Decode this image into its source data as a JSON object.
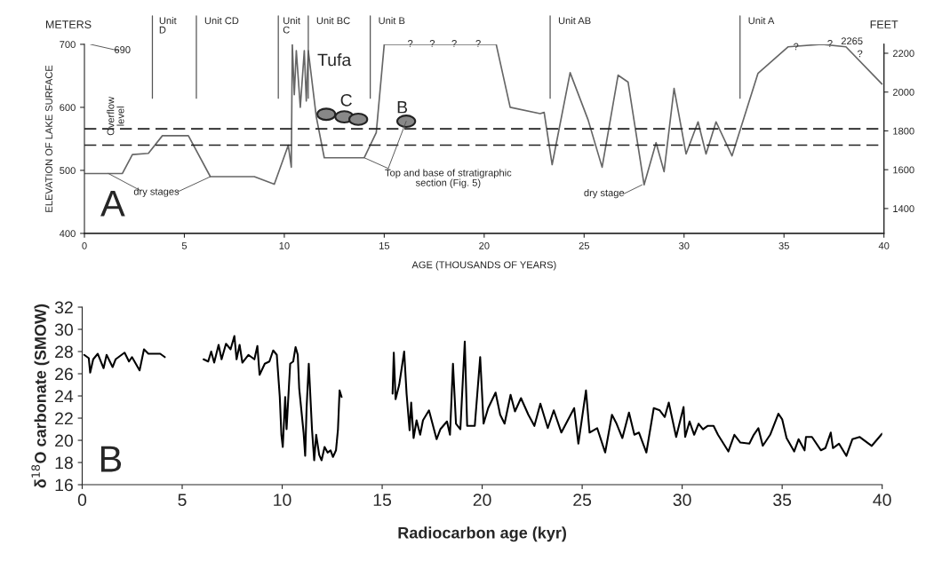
{
  "chart_data": [
    {
      "type": "line",
      "xlabel": "AGE (THOUSANDS OF YEARS)",
      "ylabel": "ELEVATION OF LAKE SURFACE",
      "y2label": "FEET",
      "xlim": [
        0,
        40
      ],
      "xticks": [
        0,
        5,
        10,
        15,
        20,
        25,
        30,
        35,
        40
      ],
      "ylim": [
        400,
        700
      ],
      "yticks": [
        400,
        500,
        600,
        700
      ],
      "y2lim": [
        1272,
        2246
      ],
      "y2ticks": [
        1400,
        1600,
        1800,
        2000,
        2200
      ],
      "grid": false,
      "legend": false,
      "series": [
        {
          "color": "#666666",
          "line_style": "solid",
          "x": [
            0,
            1.9,
            2.4,
            3.2,
            3.9,
            5.2,
            6.3,
            8.5,
            9.5,
            10.2,
            10.35,
            10.4,
            10.5,
            10.6,
            10.8,
            11.0,
            11.1,
            11.2,
            11.6,
            12.0,
            14.0,
            14.6,
            15.0,
            20.6,
            21.3,
            22.8,
            23.0,
            23.4,
            24.3,
            25.2,
            25.9,
            26.7,
            27.2,
            28.0,
            28.6,
            29.0,
            29.5,
            30.1,
            30.7,
            31.1,
            31.6,
            32.4,
            33.7,
            35.2,
            36.9,
            38.1,
            39.9
          ],
          "values": [
            495,
            495,
            525,
            527,
            555,
            555,
            490,
            490,
            478,
            540,
            505,
            700,
            620,
            690,
            600,
            690,
            610,
            690,
            585,
            520,
            520,
            560,
            700,
            700,
            600,
            590,
            592,
            509,
            655,
            580,
            505,
            651,
            640,
            477,
            544,
            498,
            630,
            526,
            577,
            526,
            577,
            523,
            654,
            696,
            700,
            696,
            637
          ]
        }
      ],
      "ref_lines": [
        {
          "axis": "y",
          "value": 566,
          "color": "#222222",
          "line_style": "dashed"
        },
        {
          "axis": "y",
          "value": 540,
          "color": "#222222",
          "line_style": "dashed"
        },
        {
          "axis": "x",
          "value": 3.4,
          "label": "Unit\nD",
          "color": "#555555"
        },
        {
          "axis": "x",
          "value": 5.6,
          "label": "Unit CD",
          "color": "#555555"
        },
        {
          "axis": "x",
          "value": 9.7,
          "label": "Unit\nC",
          "color": "#555555"
        },
        {
          "axis": "x",
          "value": 11.2,
          "label": "Unit BC",
          "color": "#555555"
        },
        {
          "axis": "x",
          "value": 14.3,
          "label": "Unit B",
          "color": "#555555"
        },
        {
          "axis": "x",
          "value": 23.3,
          "label": "Unit AB",
          "color": "#555555"
        },
        {
          "axis": "x",
          "value": 32.8,
          "label": "Unit A",
          "color": "#555555"
        }
      ],
      "annotations": [
        "METERS",
        "A",
        "Overflow\nlevel",
        "690",
        "2265",
        "dry stages",
        "dry stage",
        "Top and base of stratigraphic\nsection (Fig. 5)",
        "Tufa",
        "C",
        "B",
        {
          "text": "?",
          "x": 16.3,
          "y": 700
        },
        {
          "text": "?",
          "x": 17.4,
          "y": 700
        },
        {
          "text": "?",
          "x": 18.5,
          "y": 700
        },
        {
          "text": "?",
          "x": 19.7,
          "y": 700
        },
        {
          "text": "?",
          "x": 35.6,
          "y": 695
        },
        {
          "text": "?",
          "x": 37.3,
          "y": 700
        },
        {
          "text": "?",
          "x": 38.8,
          "y": 684
        }
      ]
    },
    {
      "type": "line",
      "xlabel": "Radiocarbon age (kyr)",
      "ylabel": "δ$^{18}$O carbonate (SMOW)",
      "xlim": [
        0,
        40
      ],
      "xticks": [
        0,
        5,
        10,
        15,
        20,
        25,
        30,
        35,
        40
      ],
      "ylim": [
        16,
        32
      ],
      "yticks": [
        16,
        18,
        20,
        22,
        24,
        26,
        28,
        30,
        32
      ],
      "grid": false,
      "legend": false,
      "series": [
        {
          "color": "#000000",
          "line_style": "solid",
          "x": [
            0.1,
            0.33,
            0.4,
            0.55,
            0.78,
            1.07,
            1.22,
            1.52,
            1.67,
            2.12,
            2.34,
            2.49,
            2.87,
            3.09,
            3.31,
            3.9,
            4.13,
            5.0,
            6.07,
            6.3,
            6.45,
            6.6,
            6.82,
            6.97,
            7.19,
            7.42,
            7.61,
            7.72,
            7.87,
            8.01,
            8.31,
            8.61,
            8.76,
            8.87,
            9.13,
            9.36,
            9.55,
            9.73,
            9.88,
            9.96,
            10.03,
            10.15,
            10.22,
            10.4,
            10.55,
            10.67,
            10.78,
            10.85,
            11.07,
            11.15,
            11.22,
            11.33,
            11.49,
            11.6,
            11.7,
            11.85,
            11.97,
            12.12,
            12.27,
            12.42,
            12.54,
            12.69,
            12.79,
            12.87,
            12.97,
            14.3,
            15.52,
            15.58,
            15.67,
            15.85,
            16.1,
            16.22,
            16.37,
            16.45,
            16.57,
            16.72,
            16.9,
            17.04,
            17.34,
            17.72,
            17.91,
            18.24,
            18.39,
            18.54,
            18.69,
            18.91,
            19.13,
            19.25,
            19.63,
            19.9,
            20.07,
            20.3,
            20.67,
            20.9,
            21.12,
            21.42,
            21.64,
            21.94,
            22.31,
            22.61,
            22.91,
            23.28,
            23.58,
            23.96,
            24.25,
            24.6,
            24.81,
            25.19,
            25.37,
            25.75,
            26.15,
            26.49,
            26.72,
            27.01,
            27.34,
            27.61,
            27.84,
            28.21,
            28.58,
            28.88,
            29.13,
            29.33,
            29.7,
            30.07,
            30.15,
            30.37,
            30.6,
            30.82,
            31.04,
            31.27,
            31.57,
            31.79,
            32.31,
            32.61,
            32.91,
            33.36,
            33.58,
            33.81,
            34.03,
            34.4,
            34.81,
            35.0,
            35.22,
            35.6,
            35.82,
            36.12,
            36.19,
            36.49,
            36.94,
            37.16,
            37.43,
            37.54,
            37.84,
            38.21,
            38.51,
            38.88,
            39.48,
            40.0
          ],
          "values": [
            27.7,
            27.4,
            26.1,
            27.3,
            27.8,
            26.5,
            27.7,
            26.6,
            27.3,
            27.9,
            27.1,
            27.5,
            26.3,
            28.2,
            27.8,
            27.8,
            27.5,
            null,
            27.3,
            27.1,
            28.0,
            27.0,
            28.6,
            27.3,
            28.7,
            28.2,
            29.4,
            27.3,
            28.6,
            27.0,
            27.7,
            27.3,
            28.5,
            25.9,
            26.9,
            27.1,
            28.1,
            27.7,
            23.9,
            20.5,
            19.4,
            23.9,
            21.0,
            26.9,
            27.1,
            28.4,
            27.7,
            24.7,
            20.7,
            18.6,
            22.9,
            26.9,
            21.0,
            18.2,
            20.5,
            18.7,
            18.2,
            19.4,
            18.9,
            19.1,
            18.5,
            19.1,
            21.0,
            24.5,
            23.9,
            null,
            24.2,
            27.9,
            23.7,
            25.0,
            28.0,
            24.2,
            20.9,
            23.4,
            20.2,
            21.8,
            20.5,
            21.8,
            22.7,
            20.1,
            21.0,
            21.7,
            20.5,
            26.9,
            21.5,
            21.0,
            28.9,
            21.3,
            21.3,
            27.5,
            21.5,
            22.9,
            24.3,
            22.3,
            21.5,
            24.1,
            22.6,
            23.8,
            22.3,
            21.3,
            23.3,
            21.1,
            22.7,
            20.7,
            21.7,
            22.9,
            19.7,
            24.5,
            20.7,
            21.1,
            18.9,
            22.3,
            21.5,
            20.2,
            22.5,
            20.5,
            20.7,
            18.9,
            22.9,
            22.7,
            22.1,
            23.4,
            20.3,
            23.0,
            20.3,
            21.7,
            20.5,
            21.5,
            21.0,
            21.3,
            21.3,
            20.5,
            19.0,
            20.5,
            19.8,
            19.7,
            20.5,
            21.1,
            19.5,
            20.5,
            22.4,
            21.9,
            20.2,
            19.0,
            20.1,
            19.1,
            20.3,
            20.3,
            19.1,
            19.3,
            20.7,
            19.3,
            19.7,
            18.6,
            20.1,
            20.3,
            19.5,
            20.6
          ]
        }
      ],
      "annotations": [
        "B"
      ]
    }
  ]
}
